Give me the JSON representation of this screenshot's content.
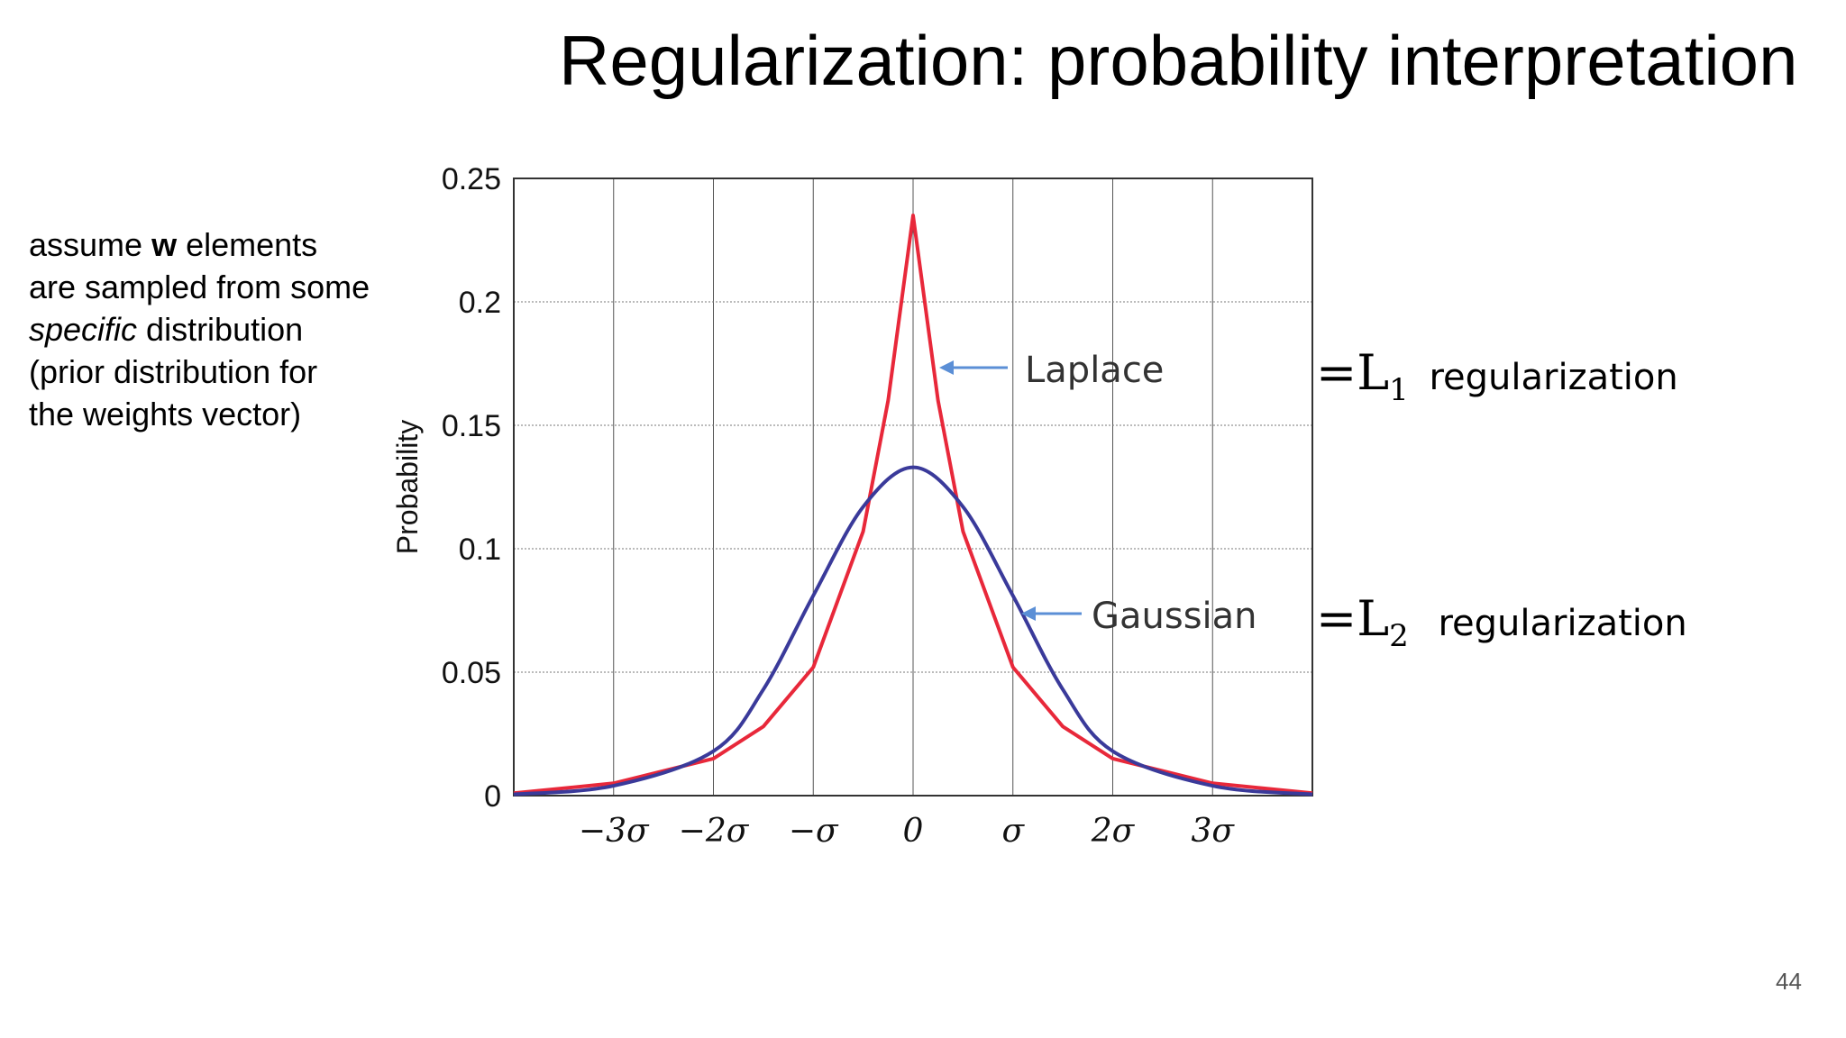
{
  "title": "Regularization: probability interpretation",
  "side_text": {
    "pre": "assume ",
    "bold": "w",
    "mid": " elements are sampled from some ",
    "italic": "specific",
    "post": " distribution (prior distribution for the weights vector)"
  },
  "annotations": {
    "l1_symbol": "=L",
    "l1_sub": "1",
    "l1_text": "regularization",
    "l2_symbol": "=L",
    "l2_sub": "2",
    "l2_text": "regularization"
  },
  "page_number": "44",
  "chart_data": {
    "type": "line",
    "title": "",
    "xlabel": "",
    "ylabel": "Probability",
    "xlim": [
      -4,
      4
    ],
    "ylim": [
      0,
      0.25
    ],
    "grid": true,
    "x_ticks": [
      -3,
      -2,
      -1,
      0,
      1,
      2,
      3
    ],
    "x_tick_labels": [
      "−3σ",
      "−2σ",
      "−σ",
      "0",
      "σ",
      "2σ",
      "3σ"
    ],
    "y_ticks": [
      0,
      0.05,
      0.1,
      0.15,
      0.2,
      0.25
    ],
    "y_tick_labels": [
      "0",
      "0.05",
      "0.1",
      "0.15",
      "0.2",
      "0.25"
    ],
    "series": [
      {
        "name": "Laplace",
        "color": "#e8283a",
        "x": [
          -4,
          -3,
          -2,
          -1.5,
          -1,
          -0.5,
          -0.25,
          0,
          0.25,
          0.5,
          1,
          1.5,
          2,
          3,
          4
        ],
        "y": [
          0.001,
          0.005,
          0.015,
          0.028,
          0.052,
          0.107,
          0.16,
          0.235,
          0.16,
          0.107,
          0.052,
          0.028,
          0.015,
          0.005,
          0.001
        ]
      },
      {
        "name": "Gaussian",
        "color": "#3a3a9a",
        "x": [
          -4,
          -3,
          -2,
          -1.5,
          -1,
          -0.5,
          0,
          0.5,
          1,
          1.5,
          2,
          3,
          4
        ],
        "y": [
          0.0005,
          0.004,
          0.018,
          0.043,
          0.081,
          0.117,
          0.133,
          0.117,
          0.081,
          0.043,
          0.018,
          0.004,
          0.0005
        ]
      }
    ]
  }
}
